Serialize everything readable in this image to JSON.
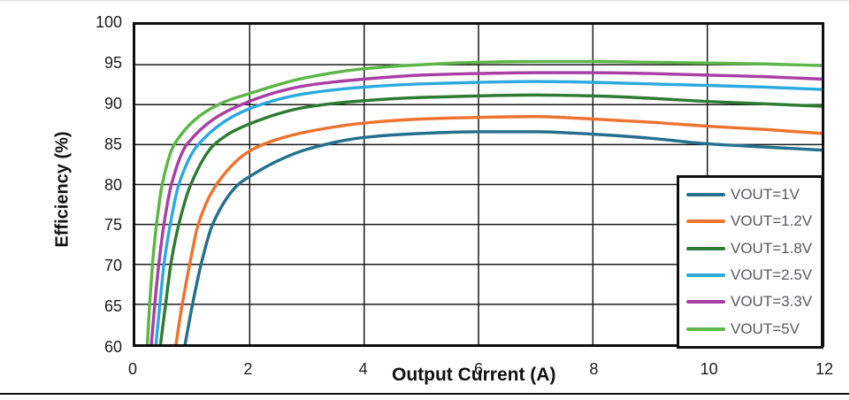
{
  "figure": {
    "x_axis_title": "Output Current (A)",
    "y_axis_title": "Efficiency (%)"
  },
  "colors": {
    "grid": "#1a1a1a",
    "axis_border": "#0e0e0e",
    "tick_label": "#1c1c1c",
    "legend_text": "#56585b",
    "bottom_rule": "#111111"
  },
  "chart_data": {
    "type": "line",
    "title": "",
    "xlabel": "Output Current (A)",
    "ylabel": "Efficiency (%)",
    "xlim": [
      0,
      12
    ],
    "ylim": [
      60,
      100
    ],
    "x_ticks": [
      0,
      2,
      4,
      6,
      8,
      10,
      12
    ],
    "y_ticks": [
      100,
      95,
      90,
      85,
      80,
      75,
      70,
      65,
      60
    ],
    "grid": true,
    "legend_position": "lower right",
    "line_width": 3.5,
    "series": [
      {
        "name": "VOUT=1V",
        "color": "#26708f",
        "points": [
          [
            0.87,
            60
          ],
          [
            1.0,
            65
          ],
          [
            1.15,
            70
          ],
          [
            1.35,
            75
          ],
          [
            1.8,
            80
          ],
          [
            2.0,
            81.0
          ],
          [
            2.5,
            83.0
          ],
          [
            3,
            84.4
          ],
          [
            4,
            85.9
          ],
          [
            5,
            86.4
          ],
          [
            6,
            86.6
          ],
          [
            7,
            86.6
          ],
          [
            8,
            86.3
          ],
          [
            9,
            85.8
          ],
          [
            10,
            85.1
          ],
          [
            11,
            84.7
          ],
          [
            12,
            84.3
          ]
        ]
      },
      {
        "name": "VOUT=1.2V",
        "color": "#ed7430",
        "points": [
          [
            0.71,
            60
          ],
          [
            0.82,
            65
          ],
          [
            0.95,
            70
          ],
          [
            1.1,
            75
          ],
          [
            1.42,
            80
          ],
          [
            2.0,
            84.2
          ],
          [
            2.5,
            85.7
          ],
          [
            3,
            86.6
          ],
          [
            4,
            87.7
          ],
          [
            5,
            88.2
          ],
          [
            6,
            88.4
          ],
          [
            7,
            88.5
          ],
          [
            8,
            88.2
          ],
          [
            9,
            87.8
          ],
          [
            10,
            87.3
          ],
          [
            11,
            86.9
          ],
          [
            12,
            86.4
          ]
        ]
      },
      {
        "name": "VOUT=1.8V",
        "color": "#2e7b33",
        "points": [
          [
            0.44,
            60
          ],
          [
            0.53,
            65
          ],
          [
            0.62,
            70
          ],
          [
            0.76,
            75
          ],
          [
            0.97,
            80
          ],
          [
            1.38,
            85
          ],
          [
            2.0,
            87.6
          ],
          [
            3,
            89.7
          ],
          [
            4,
            90.5
          ],
          [
            5,
            90.9
          ],
          [
            6,
            91.1
          ],
          [
            7,
            91.2
          ],
          [
            8,
            91.1
          ],
          [
            9,
            90.8
          ],
          [
            10,
            90.4
          ],
          [
            11,
            90.1
          ],
          [
            12,
            89.8
          ]
        ]
      },
      {
        "name": "VOUT=2.5V",
        "color": "#2ba9e0",
        "points": [
          [
            0.36,
            60
          ],
          [
            0.43,
            65
          ],
          [
            0.5,
            70
          ],
          [
            0.61,
            75
          ],
          [
            0.76,
            80
          ],
          [
            1.1,
            85
          ],
          [
            2.0,
            89.5
          ],
          [
            3,
            91.4
          ],
          [
            4,
            92.2
          ],
          [
            5,
            92.6
          ],
          [
            6,
            92.8
          ],
          [
            7,
            92.9
          ],
          [
            8,
            92.8
          ],
          [
            9,
            92.6
          ],
          [
            10,
            92.4
          ],
          [
            11,
            92.2
          ],
          [
            12,
            91.9
          ]
        ]
      },
      {
        "name": "VOUT=3.3V",
        "color": "#a83fa5",
        "points": [
          [
            0.28,
            60
          ],
          [
            0.34,
            65
          ],
          [
            0.41,
            70
          ],
          [
            0.5,
            75
          ],
          [
            0.63,
            80
          ],
          [
            0.9,
            85
          ],
          [
            1.85,
            90
          ],
          [
            3,
            92.4
          ],
          [
            4,
            93.2
          ],
          [
            5,
            93.7
          ],
          [
            6,
            93.9
          ],
          [
            7,
            94.0
          ],
          [
            8,
            94.0
          ],
          [
            9,
            93.9
          ],
          [
            10,
            93.7
          ],
          [
            11,
            93.5
          ],
          [
            12,
            93.2
          ]
        ]
      },
      {
        "name": "VOUT=5V",
        "color": "#5db648",
        "points": [
          [
            0.21,
            60
          ],
          [
            0.25,
            65
          ],
          [
            0.3,
            70
          ],
          [
            0.37,
            75
          ],
          [
            0.47,
            80
          ],
          [
            0.68,
            85
          ],
          [
            1.45,
            90
          ],
          [
            2,
            91.4
          ],
          [
            3,
            93.4
          ],
          [
            4,
            94.5
          ],
          [
            5,
            95.0
          ],
          [
            6,
            95.3
          ],
          [
            7,
            95.4
          ],
          [
            8,
            95.4
          ],
          [
            9,
            95.3
          ],
          [
            10,
            95.2
          ],
          [
            11,
            95.1
          ],
          [
            12,
            94.9
          ]
        ]
      }
    ]
  }
}
